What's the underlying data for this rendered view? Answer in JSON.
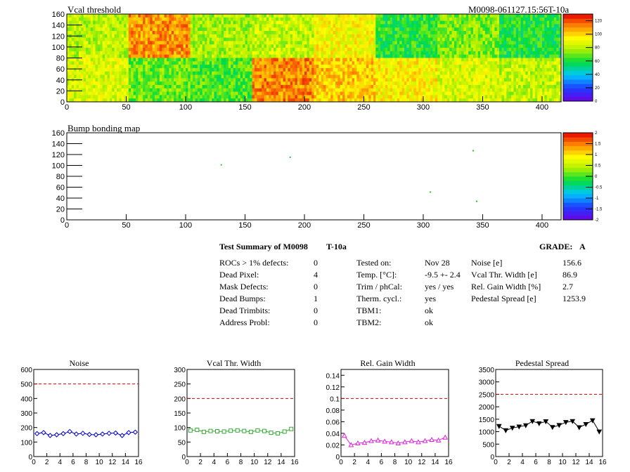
{
  "header": {
    "vcal_title": "Vcal threshold",
    "module_id": "M0098-061127.15:56T-10a",
    "bump_title": "Bump bonding map"
  },
  "summary": {
    "title": "Test Summary of M0098",
    "temp_tag": "T-10a",
    "grade_label": "GRADE:",
    "grade_value": "A",
    "col1": [
      {
        "label": "ROCs > 1% defects:",
        "value": "0"
      },
      {
        "label": "Dead Pixel:",
        "value": "4"
      },
      {
        "label": "Mask Defects:",
        "value": "0"
      },
      {
        "label": "Dead Bumps:",
        "value": "1"
      },
      {
        "label": "Dead Trimbits:",
        "value": "0"
      },
      {
        "label": "Address Probl:",
        "value": "0"
      }
    ],
    "col2": [
      {
        "label": "Tested on:",
        "value": "Nov 28"
      },
      {
        "label": "Temp. [°C]:",
        "value": "-9.5 +- 2.4"
      },
      {
        "label": "Trim / phCal:",
        "value": "yes / yes"
      },
      {
        "label": "Therm. cycl.:",
        "value": "yes"
      },
      {
        "label": "TBM1:",
        "value": "ok"
      },
      {
        "label": "TBM2:",
        "value": "ok"
      }
    ],
    "col3": [
      {
        "label": "Noise [e]",
        "value": "156.6"
      },
      {
        "label": "Vcal Thr. Width [e]",
        "value": "86.9"
      },
      {
        "label": "Rel. Gain Width [%]",
        "value": "2.7"
      },
      {
        "label": "Pedestal Spread [e]",
        "value": "1253.9"
      }
    ]
  },
  "chart_data": [
    {
      "type": "heatmap",
      "title": "Vcal threshold",
      "xlim": [
        0,
        416
      ],
      "ylim": [
        0,
        160
      ],
      "xticks": [
        0,
        50,
        100,
        150,
        200,
        250,
        300,
        350,
        400
      ],
      "yticks": [
        0,
        20,
        40,
        60,
        80,
        100,
        120,
        140,
        160
      ],
      "colorbar": {
        "range": [
          0,
          130
        ],
        "ticks": [
          0,
          20,
          40,
          60,
          80,
          100,
          120
        ]
      },
      "roc_levels_top": [
        80,
        110,
        78,
        82,
        92,
        62,
        72,
        60
      ],
      "roc_levels_bottom": [
        86,
        70,
        66,
        112,
        102,
        94,
        86,
        82
      ]
    },
    {
      "type": "heatmap",
      "title": "Bump bonding map",
      "xlim": [
        0,
        416
      ],
      "ylim": [
        0,
        160
      ],
      "xticks": [
        0,
        50,
        100,
        150,
        200,
        250,
        300,
        350,
        400
      ],
      "yticks": [
        0,
        20,
        40,
        60,
        80,
        100,
        120,
        140,
        160
      ],
      "colorbar": {
        "range": [
          -2,
          2
        ],
        "ticks": [
          -2,
          -1.5,
          -1,
          -0.5,
          0,
          0.5,
          1,
          1.5,
          2
        ]
      },
      "points": [
        {
          "x": 130,
          "y": 101
        },
        {
          "x": 188,
          "y": 115
        },
        {
          "x": 342,
          "y": 127
        },
        {
          "x": 306,
          "y": 51
        },
        {
          "x": 345,
          "y": 34
        }
      ]
    },
    {
      "type": "line",
      "title": "Noise",
      "xlim": [
        0,
        16
      ],
      "ylim": [
        0,
        600
      ],
      "xticks": [
        0,
        2,
        4,
        6,
        8,
        10,
        12,
        14,
        16
      ],
      "yticks": [
        0,
        100,
        200,
        300,
        400,
        500,
        600
      ],
      "threshold": 500,
      "color": "#0000cc",
      "marker": "diamond",
      "x": [
        0.5,
        1.5,
        2.5,
        3.5,
        4.5,
        5.5,
        6.5,
        7.5,
        8.5,
        9.5,
        10.5,
        11.5,
        12.5,
        13.5,
        14.5,
        15.5
      ],
      "values": [
        158,
        165,
        145,
        150,
        158,
        172,
        155,
        160,
        152,
        150,
        155,
        160,
        162,
        145,
        165,
        168
      ]
    },
    {
      "type": "line",
      "title": "Vcal Thr. Width",
      "xlim": [
        0,
        16
      ],
      "ylim": [
        0,
        300
      ],
      "xticks": [
        0,
        2,
        4,
        6,
        8,
        10,
        12,
        14,
        16
      ],
      "yticks": [
        0,
        50,
        100,
        150,
        200,
        250,
        300
      ],
      "threshold": 200,
      "color": "#33aa33",
      "marker": "square",
      "x": [
        0.5,
        1.5,
        2.5,
        3.5,
        4.5,
        5.5,
        6.5,
        7.5,
        8.5,
        9.5,
        10.5,
        11.5,
        12.5,
        13.5,
        14.5,
        15.5
      ],
      "values": [
        90,
        92,
        85,
        88,
        87,
        86,
        89,
        90,
        88,
        85,
        90,
        88,
        82,
        80,
        86,
        95
      ]
    },
    {
      "type": "line",
      "title": "Rel. Gain Width",
      "xlim": [
        0,
        16
      ],
      "ylim": [
        0,
        0.15
      ],
      "xticks": [
        0,
        2,
        4,
        6,
        8,
        10,
        12,
        14,
        16
      ],
      "yticks": [
        0,
        0.02,
        0.04,
        0.06,
        0.08,
        0.1,
        0.12,
        0.14
      ],
      "threshold": 0.1,
      "color": "#dd22dd",
      "marker": "triangle",
      "x": [
        0.5,
        1.5,
        2.5,
        3.5,
        4.5,
        5.5,
        6.5,
        7.5,
        8.5,
        9.5,
        10.5,
        11.5,
        12.5,
        13.5,
        14.5,
        15.5
      ],
      "values": [
        0.036,
        0.02,
        0.023,
        0.024,
        0.027,
        0.028,
        0.026,
        0.025,
        0.023,
        0.025,
        0.027,
        0.025,
        0.027,
        0.029,
        0.028,
        0.033
      ]
    },
    {
      "type": "line",
      "title": "Pedestal Spread",
      "xlim": [
        0,
        16
      ],
      "ylim": [
        0,
        3500
      ],
      "xticks": [
        0,
        2,
        4,
        6,
        8,
        10,
        12,
        14,
        16
      ],
      "yticks": [
        0,
        500,
        1000,
        1500,
        2000,
        2500,
        3000,
        3500
      ],
      "threshold": 2500,
      "color": "#000000",
      "marker": "triangle-down",
      "x": [
        0.5,
        1.5,
        2.5,
        3.5,
        4.5,
        5.5,
        6.5,
        7.5,
        8.5,
        9.5,
        10.5,
        11.5,
        12.5,
        13.5,
        14.5,
        15.5
      ],
      "values": [
        1220,
        1050,
        1150,
        1200,
        1250,
        1420,
        1330,
        1410,
        1180,
        1260,
        1380,
        1420,
        1170,
        1300,
        1450,
        1000
      ]
    }
  ]
}
